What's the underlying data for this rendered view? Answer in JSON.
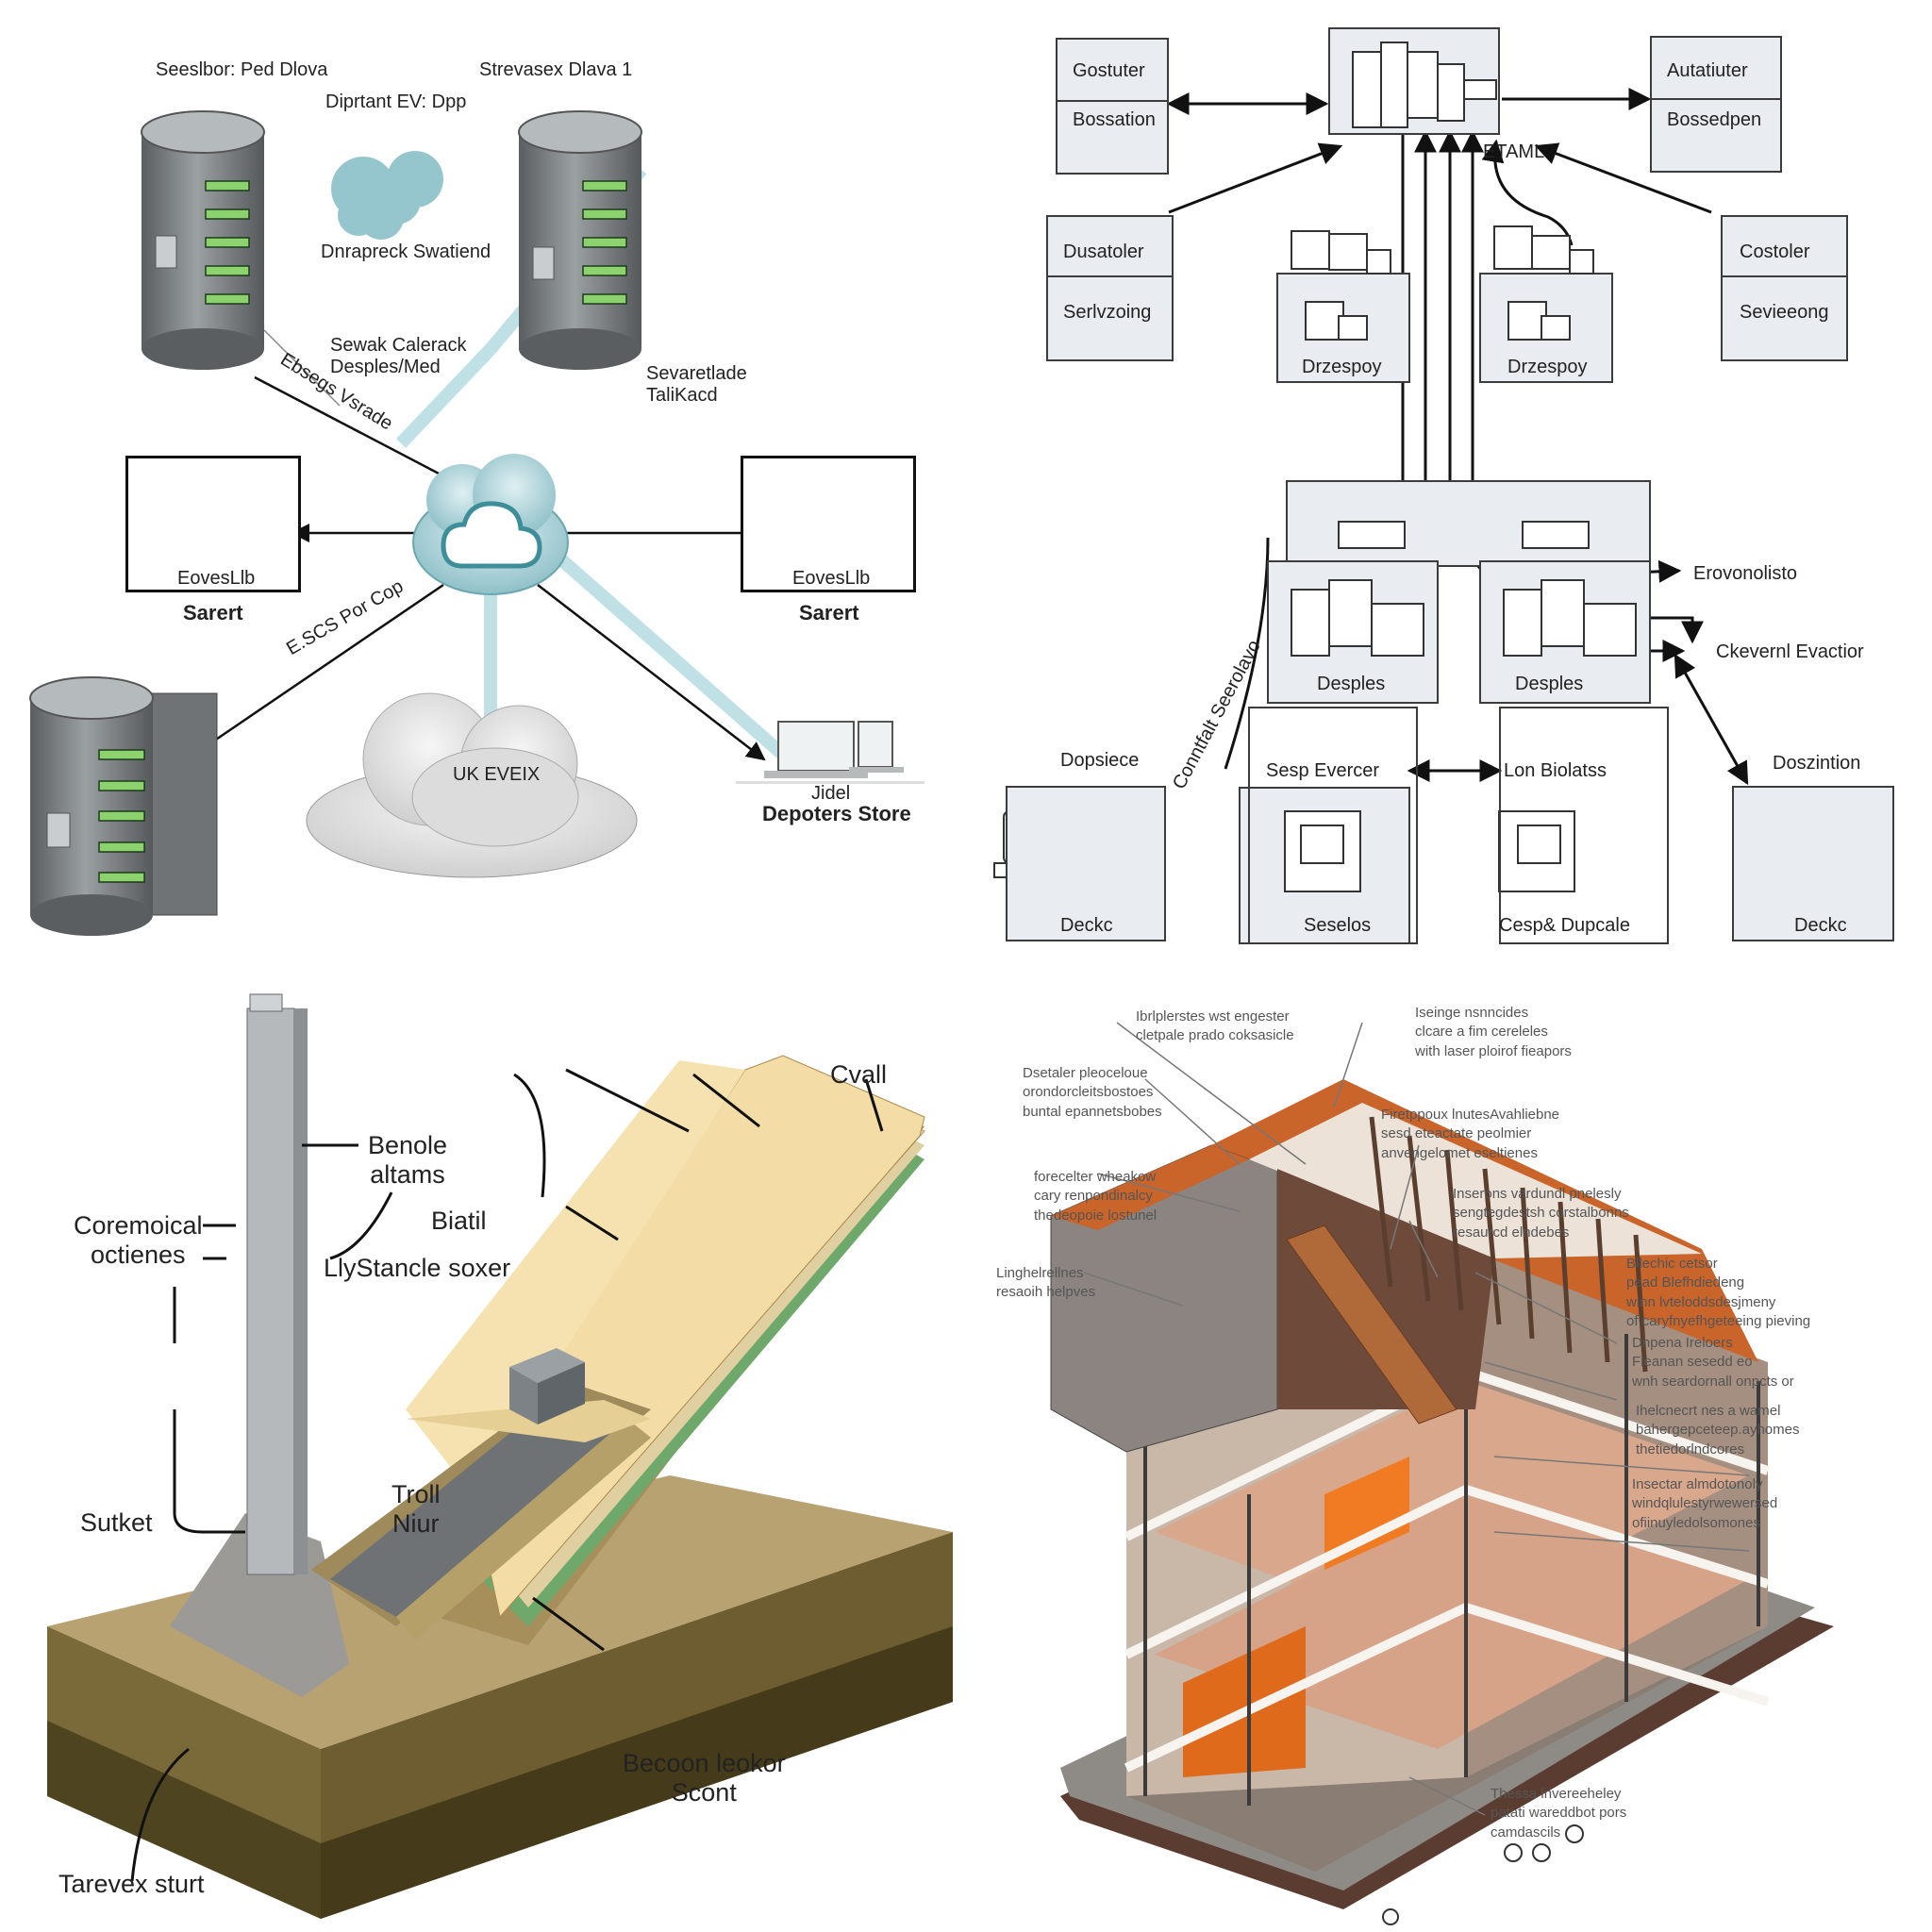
{
  "network": {
    "label_top_left": "Seeslbor: Ped Dlova",
    "label_top_center": "Diprtant EV: Dpp",
    "label_top_right": "Strevasex Dlava 1",
    "cloud_label": "Dnrapreck Swatiend",
    "line_label_1": "Sewak Calerack\nDesples/Med",
    "line_label_2": "Ebsegs Vsrade",
    "line_label_3": "Sevaretlade\nTaliKacd",
    "line_label_4": "E.SCS Por Cop",
    "left_box_caption": "EovesLlb",
    "left_box_title": "Sarert",
    "right_box_caption": "EovesLlb",
    "right_box_title": "Sarert",
    "bottom_cloud_label": "UK EVEIX",
    "laptop_caption": "Jidel",
    "laptop_title": "Depoters Store"
  },
  "flowchart": {
    "top_left_box": {
      "row1": "Gostuter",
      "row2": "Bossation"
    },
    "top_right_box": {
      "row1": "Autatiuter",
      "row2": "Bossedpen"
    },
    "mid_left_box": {
      "row1": "Dusatoler",
      "row2": "Serlvzoing"
    },
    "mid_right_box": {
      "row1": "Costoler",
      "row2": "Sevieeong"
    },
    "top_center_label": "ETAML",
    "left_sub_label": "Drzespoy",
    "right_sub_label": "Drzespoy",
    "center_left_label": "Desples",
    "center_right_label": "Desples",
    "right_arrow_1": "Erovonolisto",
    "right_arrow_2": "Ckevernl Evactior",
    "rotated_label": "Conntfalt Seerolavo",
    "far_left_title": "Dopsiece",
    "far_left_caption": "Deckc",
    "bottom_box_1_title": "Sesp Evercer",
    "bottom_box_1_caption": "Seselos",
    "bottom_box_2_title": "Lon Biolatss",
    "bottom_box_2_caption": "Cesp& Dupcale",
    "far_right_title": "Doszintion",
    "far_right_caption": "Deckc"
  },
  "geology": {
    "label_cvall": "Cvall",
    "label_benole": "Benole\naltams",
    "label_biatil": "Biatil",
    "label_lly": "LlyStancle soxer",
    "label_coremoical": "Coremoical\noctienes",
    "label_troll": "Troll\nNiur",
    "label_suket": "Sutket",
    "label_becoon": "Becoon leokor\nScont",
    "label_tarevex": "Tarevex sturt"
  },
  "building": {
    "note_1": "Ibrlplerstes wst engester\ncletpale prado coksasicle",
    "note_2": "Iseinge nsnncides\nclcare a fim cereleles\nwith laser ploirof fieapors",
    "note_3": "Dsetaler pleoceloue\norondorcleitsbostoes\nbuntal epannetsbobes",
    "note_4": "Firetppoux lnutesAvahliebne\nsesd eteactate peolmier\nanvengelomet eseltienes",
    "note_5": "forecelter wheakow\ncary renpondinalcy\nthedeopoie lostunel",
    "note_6": "Inserons vardundl pnelesly\nsengtegdestsh corstalbonns\nresaurcd elndebes",
    "note_7": "Linghelrellnes\nresaoih helpves",
    "note_8": "Bllechic cetsor\npead Blefhdiedeng\nwinn lvteloddsdesjmeny\nof caryfnyefhgeteeing pieving",
    "note_9": "Dnpena Ireloers\nFleanan sesedd eo\nwnh seardornall onpcts or",
    "note_10": "Ihelcnecrt nes a wamel\nbahergepceteep.ayhomes\nthetiedorlndcores",
    "note_11": "Insectar almdotonoly\nwindqlulestyrwewersed\nofiinuyledolsomones",
    "note_12": "Thessa lnvereeheley\npatati wareddbot pors\ncamdascils"
  },
  "colors": {
    "server_gray": "#7d8284",
    "teal_cloud": "#7fb9c2",
    "box_fill": "#e9edf2",
    "wood_light": "#f1d9a0",
    "soil_olive": "#7a6a3a",
    "roof_orange": "#c9642a",
    "accent_green": "#6ea86a"
  }
}
